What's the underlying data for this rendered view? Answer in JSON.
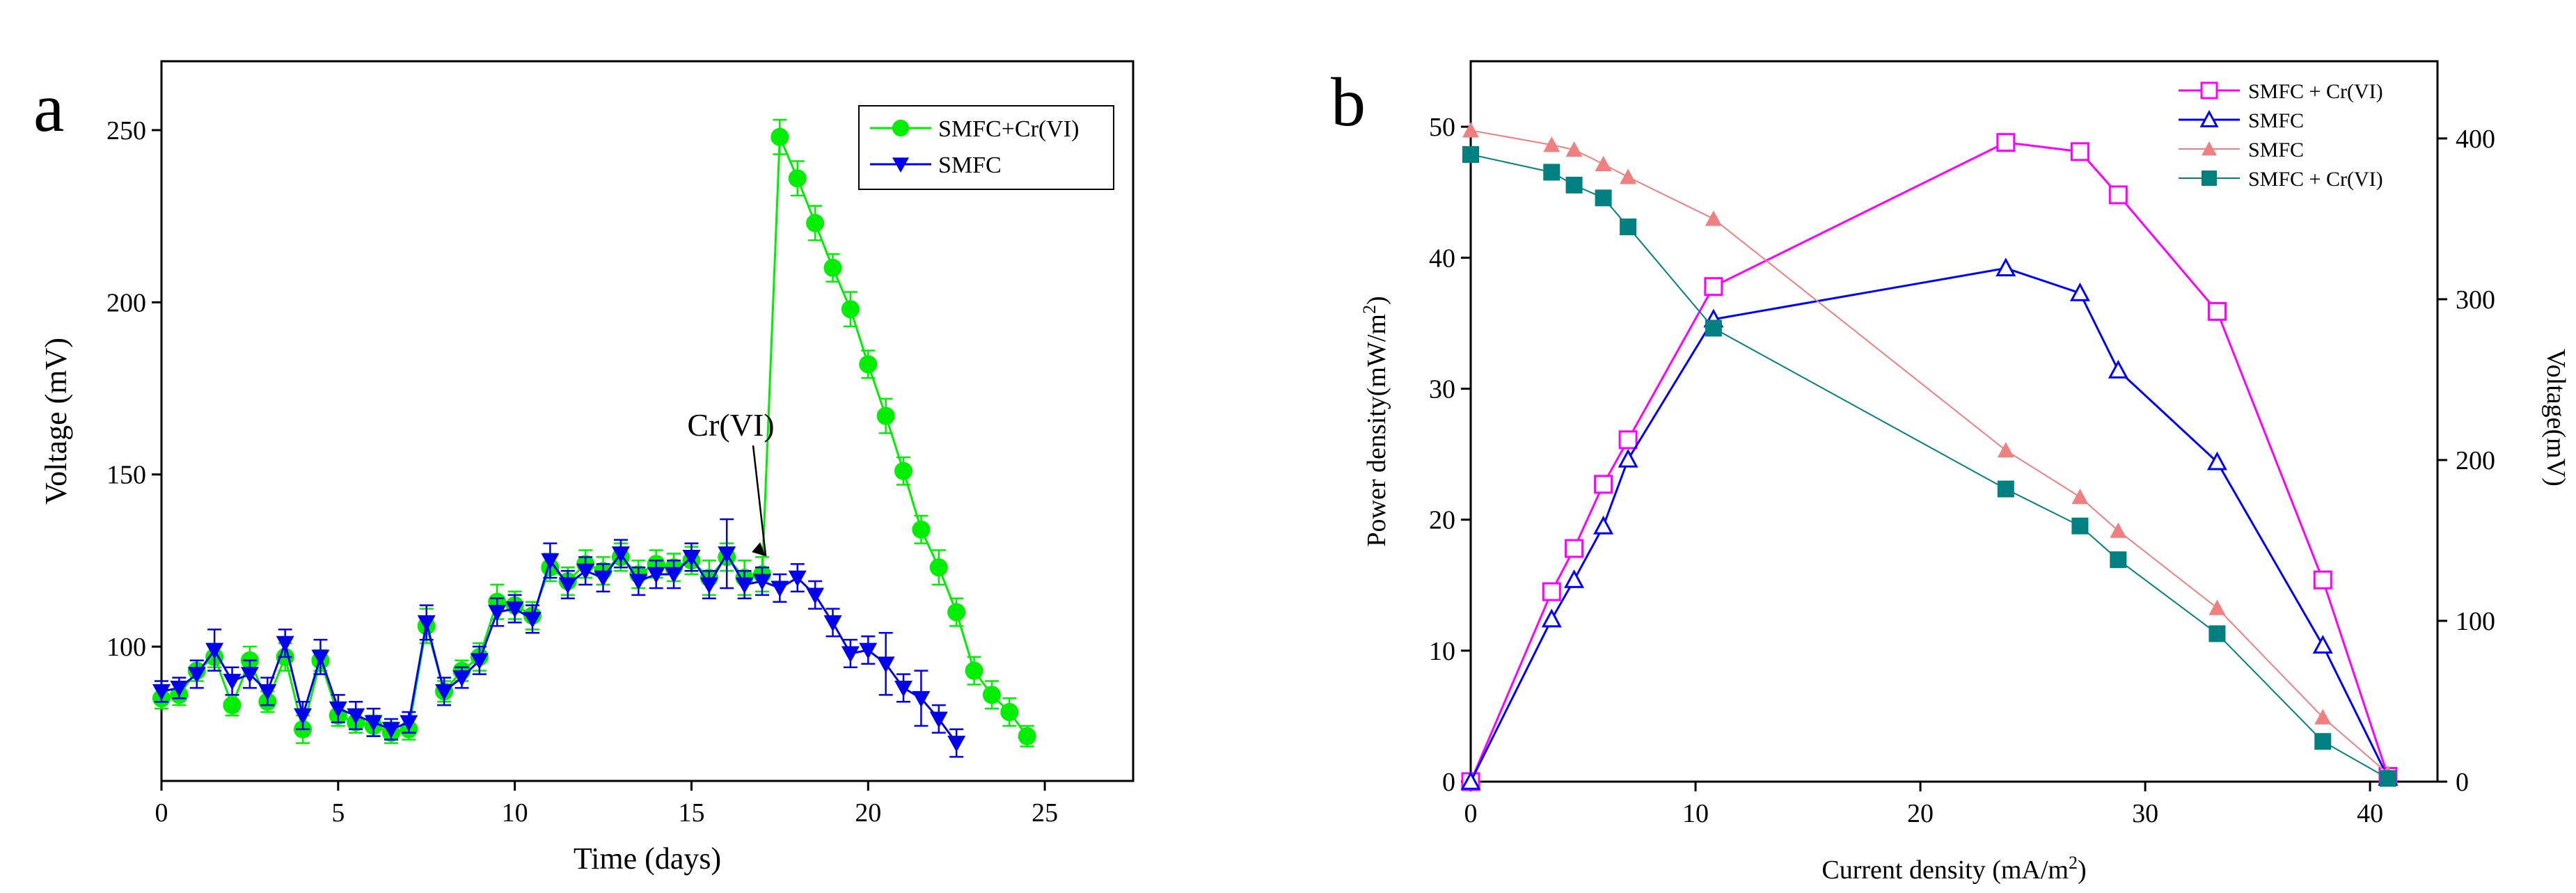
{
  "chart_data": [
    {
      "panel_label": "a",
      "type": "line",
      "title": "",
      "xlabel": "Time (days)",
      "ylabel": "Voltage (mV)",
      "xlim": [
        0,
        27.5
      ],
      "ylim": [
        61,
        270
      ],
      "xticks": [
        0,
        5,
        10,
        15,
        20,
        25
      ],
      "yticks": [
        100,
        150,
        200,
        250
      ],
      "xtick_labels": [
        "0",
        "5",
        "10",
        "15",
        "20",
        "25"
      ],
      "ytick_labels": [
        "100",
        "150",
        "200",
        "250"
      ],
      "legend": "top-right",
      "annotation": {
        "text": "Cr(VI)",
        "x": 17.2,
        "y": 121
      },
      "series": [
        {
          "name": "SMFC+Cr(VI)",
          "color": "#00ee00",
          "marker": "circle",
          "x": [
            0,
            0.5,
            1,
            1.5,
            2,
            2.5,
            3,
            3.5,
            4,
            4.5,
            5,
            5.5,
            6,
            6.5,
            7,
            7.5,
            8,
            8.5,
            9,
            9.5,
            10,
            10.5,
            11,
            11.5,
            12,
            12.5,
            13,
            13.5,
            14,
            14.5,
            15,
            15.5,
            16,
            16.5,
            17,
            17.5,
            18,
            18.5,
            19,
            19.5,
            20,
            20.5,
            21,
            21.5,
            22,
            22.5,
            23,
            23.5,
            24,
            24.5
          ],
          "y": [
            85,
            86,
            93,
            97,
            83,
            96,
            84,
            97,
            76,
            96,
            80,
            78,
            77,
            75,
            76,
            106,
            87,
            93,
            97,
            113,
            112,
            109,
            123,
            119,
            124,
            122,
            126,
            121,
            124,
            123,
            125,
            120,
            126,
            120,
            121,
            248,
            236,
            223,
            210,
            198,
            182,
            167,
            151,
            134,
            123,
            110,
            93,
            86,
            81,
            74
          ],
          "err": [
            3,
            3,
            3,
            3,
            3,
            4,
            3,
            4,
            4,
            3,
            3,
            3,
            3,
            3,
            3,
            5,
            3,
            3,
            4,
            5,
            4,
            4,
            4,
            4,
            4,
            4,
            4,
            4,
            4,
            4,
            4,
            5,
            4,
            5,
            5,
            5,
            5,
            5,
            4,
            5,
            4,
            5,
            4,
            4,
            5,
            4,
            4,
            4,
            4,
            3
          ]
        },
        {
          "name": "SMFC",
          "color": "#0000ee",
          "marker": "triangle-down",
          "x": [
            0,
            0.5,
            1,
            1.5,
            2,
            2.5,
            3,
            3.5,
            4,
            4.5,
            5,
            5.5,
            6,
            6.5,
            7,
            7.5,
            8,
            8.5,
            9,
            9.5,
            10,
            10.5,
            11,
            11.5,
            12,
            12.5,
            13,
            13.5,
            14,
            14.5,
            15,
            15.5,
            16,
            16.5,
            17,
            17.5,
            18,
            18.5,
            19,
            19.5,
            20,
            20.5,
            21,
            21.5,
            22,
            22.5
          ],
          "y": [
            87,
            88,
            92,
            99,
            90,
            92,
            87,
            101,
            80,
            97,
            82,
            80,
            78,
            76,
            78,
            107,
            87,
            91,
            96,
            110,
            111,
            108,
            125,
            118,
            122,
            120,
            127,
            119,
            121,
            121,
            126,
            118,
            127,
            118,
            119,
            117,
            120,
            115,
            107,
            98,
            99,
            95,
            88,
            85,
            79,
            72
          ],
          "err": [
            3,
            3,
            4,
            6,
            4,
            4,
            4,
            4,
            4,
            5,
            4,
            4,
            4,
            3,
            3,
            5,
            4,
            3,
            4,
            4,
            4,
            4,
            5,
            4,
            4,
            4,
            4,
            4,
            4,
            4,
            4,
            4,
            10,
            4,
            4,
            4,
            4,
            4,
            4,
            4,
            4,
            9,
            4,
            8,
            4,
            4
          ]
        }
      ]
    },
    {
      "panel_label": "b",
      "type": "line",
      "title": "",
      "xlabel": "Current density (mA/m",
      "xlabel_sup": "2",
      "xlabel_end": ")",
      "ylabel": "Power density(mW/m",
      "ylabel_sup": "2",
      "ylabel_end": ")",
      "y2label": "Voltage(mV)",
      "xlim": [
        0,
        43
      ],
      "ylim": [
        0,
        55
      ],
      "y2lim": [
        0,
        448
      ],
      "xticks": [
        0,
        10,
        20,
        30,
        40
      ],
      "yticks": [
        0,
        10,
        20,
        30,
        40,
        50
      ],
      "y2ticks": [
        0,
        100,
        200,
        300,
        400
      ],
      "xtick_labels": [
        "0",
        "10",
        "20",
        "30",
        "40"
      ],
      "ytick_labels": [
        "0",
        "10",
        "20",
        "30",
        "40",
        "50"
      ],
      "y2tick_labels": [
        "0",
        "100",
        "200",
        "300",
        "400"
      ],
      "legend": "top-right",
      "series": [
        {
          "name": "SMFC + Cr(VI)",
          "axis": "left",
          "color": "#ff00ff",
          "marker": "open-square",
          "x": [
            0,
            3.6,
            4.6,
            5.9,
            7,
            10.8,
            23.8,
            27.1,
            28.8,
            33.2,
            37.9,
            40.8
          ],
          "y": [
            0,
            14.5,
            17.8,
            22.7,
            26.1,
            37.8,
            48.8,
            48.1,
            44.8,
            35.9,
            15.4,
            0.4
          ]
        },
        {
          "name": "SMFC",
          "axis": "left",
          "color": "#0000ff",
          "marker": "open-triangle",
          "x": [
            0,
            3.6,
            4.6,
            5.9,
            7,
            10.8,
            23.8,
            27.1,
            28.8,
            33.2,
            37.9,
            40.8
          ],
          "y": [
            0,
            12.4,
            15.4,
            19.5,
            24.6,
            35.3,
            39.2,
            37.3,
            31.4,
            24.4,
            10.4,
            0.3
          ]
        },
        {
          "name": "SMFC",
          "axis": "right",
          "color": "#f08080",
          "marker": "filled-triangle",
          "x": [
            0,
            3.6,
            4.6,
            5.9,
            7,
            10.8,
            23.8,
            27.1,
            28.8,
            33.2,
            37.9,
            40.8
          ],
          "y": [
            405,
            396,
            393,
            384,
            376,
            350,
            206,
            177,
            156,
            108,
            40,
            5
          ]
        },
        {
          "name": "SMFC + Cr(VI)",
          "axis": "right",
          "color": "#008080",
          "marker": "filled-square",
          "x": [
            0,
            3.6,
            4.6,
            5.9,
            7,
            10.8,
            23.8,
            27.1,
            28.8,
            33.2,
            37.9,
            40.8
          ],
          "y": [
            390,
            379,
            371,
            363,
            345,
            282,
            182,
            159,
            138,
            92,
            25,
            2
          ]
        }
      ]
    }
  ]
}
